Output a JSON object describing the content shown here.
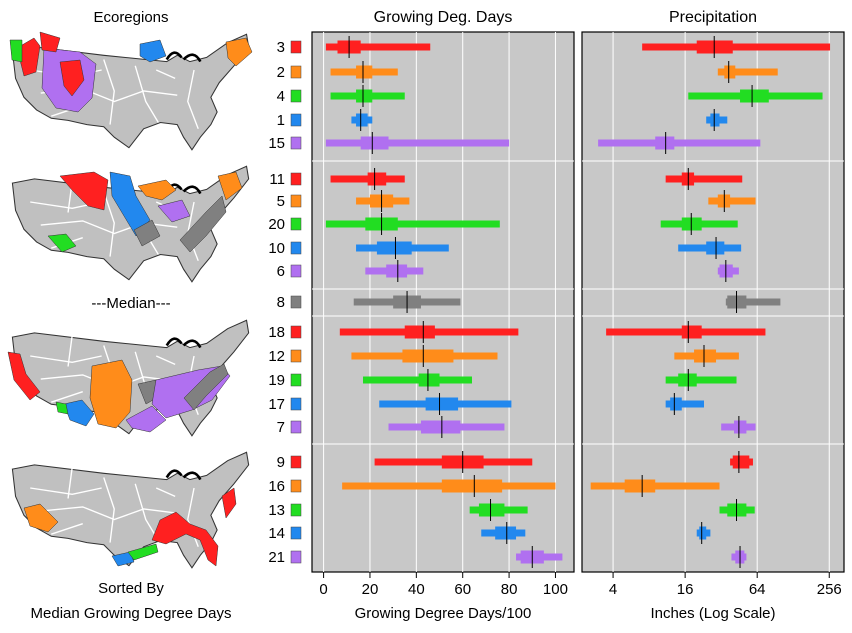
{
  "left_column": {
    "title": "Ecoregions",
    "median_label": "---Median---",
    "footer_line1": "Sorted By",
    "footer_line2": "Median Growing Degree Days"
  },
  "colors": {
    "red": "#ff2020",
    "orange": "#ff8c1a",
    "green": "#22dd22",
    "blue": "#2288ee",
    "purple": "#b070f0",
    "gray": "#808080",
    "panel_bg": "#c8c8c8",
    "map_fill": "#c0c0c0"
  },
  "chart_data": [
    {
      "type": "range-bar",
      "title": "Growing Deg. Days",
      "xlabel": "Growing Degree Days/100",
      "xlim": [
        -5,
        108
      ],
      "ticks": [
        0,
        20,
        40,
        60,
        80,
        100
      ],
      "tick_labels": [
        "0",
        "20",
        "40",
        "60",
        "80",
        "100"
      ],
      "grid": true,
      "series": [
        {
          "name": "3",
          "color": "red",
          "range": [
            1,
            46
          ],
          "iqr": [
            6,
            16
          ],
          "median": 11
        },
        {
          "name": "2",
          "color": "orange",
          "range": [
            3,
            32
          ],
          "iqr": [
            14,
            21
          ],
          "median": 17
        },
        {
          "name": "4",
          "color": "green",
          "range": [
            3,
            35
          ],
          "iqr": [
            14,
            21
          ],
          "median": 17
        },
        {
          "name": "1",
          "color": "blue",
          "range": [
            12,
            21
          ],
          "iqr": [
            14,
            19
          ],
          "median": 16
        },
        {
          "name": "15",
          "color": "purple",
          "range": [
            1,
            80
          ],
          "iqr": [
            16,
            28
          ],
          "median": 21
        },
        {
          "name": "11",
          "color": "red",
          "range": [
            3,
            35
          ],
          "iqr": [
            19,
            27
          ],
          "median": 22
        },
        {
          "name": "5",
          "color": "orange",
          "range": [
            14,
            37
          ],
          "iqr": [
            20,
            30
          ],
          "median": 25
        },
        {
          "name": "20",
          "color": "green",
          "range": [
            1,
            76
          ],
          "iqr": [
            18,
            32
          ],
          "median": 25
        },
        {
          "name": "10",
          "color": "blue",
          "range": [
            14,
            54
          ],
          "iqr": [
            23,
            38
          ],
          "median": 31
        },
        {
          "name": "6",
          "color": "purple",
          "range": [
            18,
            43
          ],
          "iqr": [
            27,
            36
          ],
          "median": 32
        },
        {
          "name": "8",
          "color": "gray",
          "range": [
            13,
            59
          ],
          "iqr": [
            30,
            42
          ],
          "median": 36
        },
        {
          "name": "18",
          "color": "red",
          "range": [
            7,
            84
          ],
          "iqr": [
            35,
            48
          ],
          "median": 43
        },
        {
          "name": "12",
          "color": "orange",
          "range": [
            12,
            75
          ],
          "iqr": [
            34,
            56
          ],
          "median": 43
        },
        {
          "name": "19",
          "color": "green",
          "range": [
            17,
            64
          ],
          "iqr": [
            41,
            50
          ],
          "median": 45
        },
        {
          "name": "17",
          "color": "blue",
          "range": [
            24,
            81
          ],
          "iqr": [
            44,
            58
          ],
          "median": 50
        },
        {
          "name": "7",
          "color": "purple",
          "range": [
            28,
            78
          ],
          "iqr": [
            42,
            59
          ],
          "median": 51
        },
        {
          "name": "9",
          "color": "red",
          "range": [
            22,
            90
          ],
          "iqr": [
            51,
            69
          ],
          "median": 60
        },
        {
          "name": "16",
          "color": "orange",
          "range": [
            8,
            100
          ],
          "iqr": [
            51,
            77
          ],
          "median": 65
        },
        {
          "name": "13",
          "color": "green",
          "range": [
            63,
            88
          ],
          "iqr": [
            67,
            78
          ],
          "median": 72
        },
        {
          "name": "14",
          "color": "blue",
          "range": [
            68,
            87
          ],
          "iqr": [
            74,
            83
          ],
          "median": 79
        },
        {
          "name": "21",
          "color": "purple",
          "range": [
            83,
            103
          ],
          "iqr": [
            85,
            95
          ],
          "median": 90
        }
      ]
    },
    {
      "type": "range-bar",
      "title": "Precipitation",
      "xlabel": "Inches (Log Scale)",
      "scale": "log2",
      "xlim": [
        2.2,
        340
      ],
      "ticks": [
        4,
        16,
        64,
        256
      ],
      "tick_labels": [
        "4",
        "16",
        "64",
        "256"
      ],
      "grid": true,
      "series": [
        {
          "name": "3",
          "color": "red",
          "range": [
            7,
            260
          ],
          "iqr": [
            20,
            40
          ],
          "median": 28
        },
        {
          "name": "2",
          "color": "orange",
          "range": [
            30,
            95
          ],
          "iqr": [
            34,
            42
          ],
          "median": 37
        },
        {
          "name": "4",
          "color": "green",
          "range": [
            17,
            225
          ],
          "iqr": [
            46,
            80
          ],
          "median": 58
        },
        {
          "name": "1",
          "color": "blue",
          "range": [
            24,
            36
          ],
          "iqr": [
            26,
            31
          ],
          "median": 28
        },
        {
          "name": "15",
          "color": "purple",
          "range": [
            3,
            68
          ],
          "iqr": [
            9,
            13
          ],
          "median": 11
        },
        {
          "name": "11",
          "color": "red",
          "range": [
            11,
            48
          ],
          "iqr": [
            15,
            19
          ],
          "median": 17
        },
        {
          "name": "5",
          "color": "orange",
          "range": [
            25,
            62
          ],
          "iqr": [
            30,
            38
          ],
          "median": 34
        },
        {
          "name": "20",
          "color": "green",
          "range": [
            10,
            44
          ],
          "iqr": [
            15,
            22
          ],
          "median": 18
        },
        {
          "name": "10",
          "color": "blue",
          "range": [
            14,
            47
          ],
          "iqr": [
            24,
            34
          ],
          "median": 29
        },
        {
          "name": "6",
          "color": "purple",
          "range": [
            30,
            45
          ],
          "iqr": [
            31,
            40
          ],
          "median": 35
        },
        {
          "name": "8",
          "color": "gray",
          "range": [
            35,
            100
          ],
          "iqr": [
            36,
            52
          ],
          "median": 43
        },
        {
          "name": "18",
          "color": "red",
          "range": [
            3.5,
            75
          ],
          "iqr": [
            15,
            22
          ],
          "median": 17
        },
        {
          "name": "12",
          "color": "orange",
          "range": [
            13,
            45
          ],
          "iqr": [
            19,
            29
          ],
          "median": 23
        },
        {
          "name": "19",
          "color": "green",
          "range": [
            11,
            43
          ],
          "iqr": [
            14,
            20
          ],
          "median": 17
        },
        {
          "name": "17",
          "color": "blue",
          "range": [
            11,
            23
          ],
          "iqr": [
            12,
            15
          ],
          "median": 13
        },
        {
          "name": "7",
          "color": "purple",
          "range": [
            32,
            62
          ],
          "iqr": [
            41,
            52
          ],
          "median": 45
        },
        {
          "name": "9",
          "color": "red",
          "range": [
            38,
            59
          ],
          "iqr": [
            40,
            55
          ],
          "median": 45
        },
        {
          "name": "16",
          "color": "orange",
          "range": [
            2.6,
            31
          ],
          "iqr": [
            5,
            9
          ],
          "median": 7
        },
        {
          "name": "13",
          "color": "green",
          "range": [
            31,
            61
          ],
          "iqr": [
            36,
            52
          ],
          "median": 43
        },
        {
          "name": "14",
          "color": "blue",
          "range": [
            20,
            26
          ],
          "iqr": [
            21,
            24
          ],
          "median": 22
        },
        {
          "name": "21",
          "color": "purple",
          "range": [
            39,
            52
          ],
          "iqr": [
            42,
            50
          ],
          "median": 46
        }
      ]
    }
  ]
}
